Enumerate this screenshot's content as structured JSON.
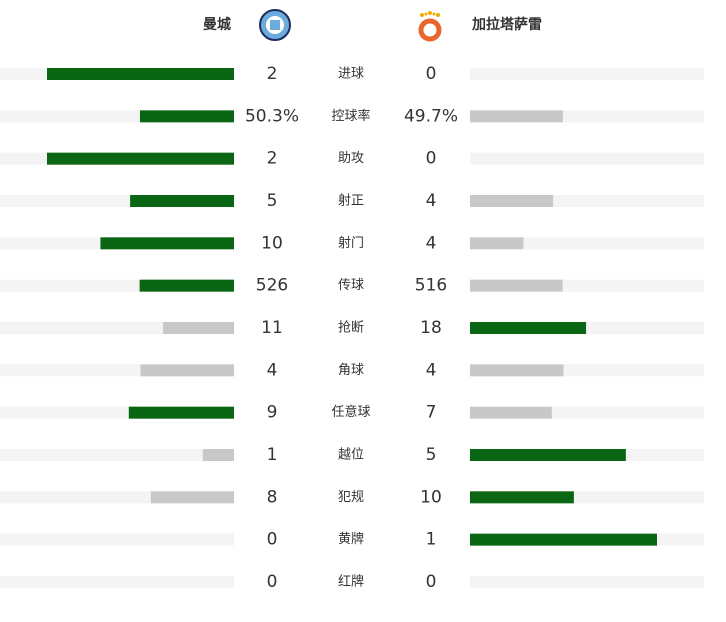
{
  "header": {
    "home": "曼城",
    "away": "加拉塔萨雷"
  },
  "colors": {
    "lead": "#0b6614",
    "trail": "#c8c8c8",
    "track": "#f4f4f4"
  },
  "stats": [
    {
      "name": "进球",
      "home": 2,
      "away": 0
    },
    {
      "name": "控球率",
      "home": 50.3,
      "away": 49.7,
      "home_label": "50.3%",
      "away_label": "49.7%"
    },
    {
      "name": "助攻",
      "home": 2,
      "away": 0
    },
    {
      "name": "射正",
      "home": 5,
      "away": 4
    },
    {
      "name": "射门",
      "home": 10,
      "away": 4
    },
    {
      "name": "传球",
      "home": 526,
      "away": 516
    },
    {
      "name": "抢断",
      "home": 11,
      "away": 18
    },
    {
      "name": "角球",
      "home": 4,
      "away": 4
    },
    {
      "name": "任意球",
      "home": 9,
      "away": 7
    },
    {
      "name": "越位",
      "home": 1,
      "away": 5
    },
    {
      "name": "犯规",
      "home": 8,
      "away": 10
    },
    {
      "name": "黄牌",
      "home": 0,
      "away": 1
    },
    {
      "name": "红牌",
      "home": 0,
      "away": 0
    }
  ]
}
